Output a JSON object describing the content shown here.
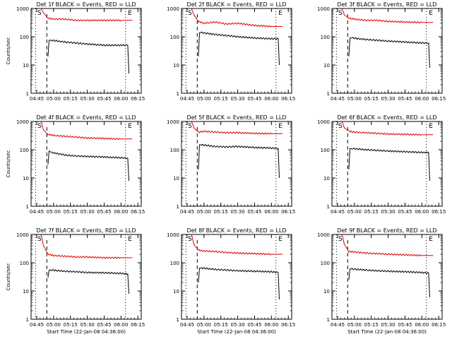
{
  "chart_data": [
    {
      "type": "line",
      "title": "Det 1f BLACK = Events, RED = LLD",
      "xlabel": "",
      "ylabel": "Counts/sec",
      "yscale": "log",
      "ylim": [
        1,
        1000
      ],
      "x_ticks": [
        "04:45",
        "05:00",
        "05:15",
        "05:30",
        "05:45",
        "06:00",
        "06:15"
      ],
      "y_ticks": [
        "1",
        "10",
        "100",
        "1000"
      ],
      "markers": {
        "S": "04:45",
        "E": "06:05"
      },
      "dashed_at": "04:54",
      "dotted_at": [
        "04:44",
        "06:04"
      ],
      "series": [
        {
          "color": "#e00000",
          "x": [
            "04:49",
            "04:51",
            "04:55",
            "05:00",
            "05:10",
            "05:20",
            "05:30",
            "05:45",
            "06:00",
            "06:10"
          ],
          "y": [
            1000,
            700,
            450,
            420,
            420,
            380,
            380,
            380,
            380,
            380
          ]
        },
        {
          "color": "#000000",
          "x": [
            "04:55",
            "04:56",
            "04:58",
            "05:10",
            "05:20",
            "05:30",
            "05:45",
            "06:00",
            "06:06",
            "06:07"
          ],
          "y": [
            20,
            75,
            75,
            65,
            60,
            55,
            50,
            50,
            50,
            5
          ]
        }
      ]
    },
    {
      "type": "line",
      "title": "Det 2f BLACK = Events, RED = LLD",
      "xlabel": "",
      "ylabel": "",
      "yscale": "log",
      "ylim": [
        1,
        1000
      ],
      "x_ticks": [
        "04:45",
        "05:00",
        "05:15",
        "05:30",
        "05:45",
        "06:00",
        "06:15"
      ],
      "y_ticks": [
        "1",
        "10",
        "100",
        "1000"
      ],
      "markers": {
        "S": "04:45",
        "E": "06:05"
      },
      "dashed_at": "04:54",
      "dotted_at": [
        "04:44",
        "06:04"
      ],
      "series": [
        {
          "color": "#e00000",
          "x": [
            "04:49",
            "04:51",
            "04:55",
            "05:00",
            "05:10",
            "05:20",
            "05:30",
            "05:45",
            "06:00",
            "06:10"
          ],
          "y": [
            1000,
            600,
            350,
            300,
            330,
            280,
            300,
            250,
            230,
            230
          ]
        },
        {
          "color": "#000000",
          "x": [
            "04:55",
            "04:56",
            "04:58",
            "05:10",
            "05:20",
            "05:30",
            "05:45",
            "06:00",
            "06:06",
            "06:07"
          ],
          "y": [
            20,
            140,
            140,
            120,
            110,
            100,
            90,
            85,
            85,
            10
          ]
        }
      ]
    },
    {
      "type": "line",
      "title": "Det 3f BLACK = Events, RED = LLD",
      "xlabel": "",
      "ylabel": "",
      "yscale": "log",
      "ylim": [
        1,
        1000
      ],
      "x_ticks": [
        "04:45",
        "05:00",
        "05:15",
        "05:30",
        "05:45",
        "06:00",
        "06:15"
      ],
      "y_ticks": [
        "1",
        "10",
        "100",
        "1000"
      ],
      "markers": {
        "S": "04:45",
        "E": "06:05"
      },
      "dashed_at": "04:54",
      "dotted_at": [
        "04:44",
        "06:04"
      ],
      "series": [
        {
          "color": "#e00000",
          "x": [
            "04:49",
            "04:51",
            "04:55",
            "05:00",
            "05:10",
            "05:20",
            "05:30",
            "05:45",
            "06:00",
            "06:10"
          ],
          "y": [
            1000,
            600,
            450,
            420,
            380,
            380,
            350,
            330,
            320,
            320
          ]
        },
        {
          "color": "#000000",
          "x": [
            "04:55",
            "04:56",
            "04:58",
            "05:10",
            "05:20",
            "05:30",
            "05:45",
            "06:00",
            "06:06",
            "06:07"
          ],
          "y": [
            20,
            90,
            90,
            80,
            75,
            70,
            65,
            60,
            60,
            8
          ]
        }
      ]
    },
    {
      "type": "line",
      "title": "Det 4f BLACK = Events, RED = LLD",
      "xlabel": "",
      "ylabel": "Counts/sec",
      "yscale": "log",
      "ylim": [
        1,
        1000
      ],
      "x_ticks": [
        "04:45",
        "05:00",
        "05:15",
        "05:30",
        "05:45",
        "06:00",
        "06:15"
      ],
      "y_ticks": [
        "1",
        "10",
        "100",
        "1000"
      ],
      "markers": {
        "S": "04:45",
        "E": "06:05"
      },
      "dashed_at": "04:54",
      "dotted_at": [
        "04:44",
        "06:04"
      ],
      "series": [
        {
          "color": "#e00000",
          "x": [
            "04:49",
            "04:51",
            "04:55",
            "05:00",
            "05:10",
            "05:20",
            "05:30",
            "05:45",
            "06:00",
            "06:10"
          ],
          "y": [
            1000,
            500,
            350,
            320,
            300,
            280,
            260,
            250,
            240,
            240
          ]
        },
        {
          "color": "#000000",
          "x": [
            "04:55",
            "04:56",
            "04:58",
            "05:10",
            "05:20",
            "05:30",
            "05:45",
            "06:00",
            "06:06",
            "06:07"
          ],
          "y": [
            30,
            90,
            80,
            65,
            60,
            58,
            55,
            52,
            50,
            8
          ]
        }
      ]
    },
    {
      "type": "line",
      "title": "Det 5f BLACK = Events, RED = LLD",
      "xlabel": "",
      "ylabel": "",
      "yscale": "log",
      "ylim": [
        1,
        1000
      ],
      "x_ticks": [
        "04:45",
        "05:00",
        "05:15",
        "05:30",
        "05:45",
        "06:00",
        "06:15"
      ],
      "y_ticks": [
        "1",
        "10",
        "100",
        "1000"
      ],
      "markers": {
        "S": "04:45",
        "E": "06:05"
      },
      "dashed_at": "04:54",
      "dotted_at": [
        "04:44",
        "06:04"
      ],
      "series": [
        {
          "color": "#e00000",
          "x": [
            "04:49",
            "04:51",
            "04:55",
            "05:00",
            "05:10",
            "05:20",
            "05:30",
            "05:45",
            "06:00",
            "06:10"
          ],
          "y": [
            1000,
            600,
            420,
            450,
            420,
            400,
            400,
            380,
            370,
            370
          ]
        },
        {
          "color": "#000000",
          "x": [
            "04:55",
            "04:56",
            "04:58",
            "05:10",
            "05:20",
            "05:30",
            "05:45",
            "06:00",
            "06:06",
            "06:07"
          ],
          "y": [
            20,
            150,
            150,
            130,
            125,
            130,
            120,
            115,
            110,
            10
          ]
        }
      ]
    },
    {
      "type": "line",
      "title": "Det 6f BLACK = Events, RED = LLD",
      "xlabel": "",
      "ylabel": "",
      "yscale": "log",
      "ylim": [
        1,
        1000
      ],
      "x_ticks": [
        "04:45",
        "05:00",
        "05:15",
        "05:30",
        "05:45",
        "06:00",
        "06:15"
      ],
      "y_ticks": [
        "1",
        "10",
        "100",
        "1000"
      ],
      "markers": {
        "S": "04:45",
        "E": "06:05"
      },
      "dashed_at": "04:54",
      "dotted_at": [
        "04:44",
        "06:04"
      ],
      "series": [
        {
          "color": "#e00000",
          "x": [
            "04:49",
            "04:51",
            "04:55",
            "05:00",
            "05:10",
            "05:20",
            "05:30",
            "05:45",
            "06:00",
            "06:10"
          ],
          "y": [
            1000,
            600,
            450,
            420,
            400,
            380,
            360,
            350,
            340,
            340
          ]
        },
        {
          "color": "#000000",
          "x": [
            "04:55",
            "04:56",
            "04:58",
            "05:10",
            "05:20",
            "05:30",
            "05:45",
            "06:00",
            "06:06",
            "06:07"
          ],
          "y": [
            20,
            110,
            110,
            100,
            95,
            90,
            85,
            80,
            80,
            8
          ]
        }
      ]
    },
    {
      "type": "line",
      "title": "Det 7f BLACK = Events, RED = LLD",
      "xlabel": "Start Time (22-Jan-08 04:36:00)",
      "ylabel": "Counts/sec",
      "yscale": "log",
      "ylim": [
        1,
        1000
      ],
      "x_ticks": [
        "04:45",
        "05:00",
        "05:15",
        "05:30",
        "05:45",
        "06:00",
        "06:15"
      ],
      "y_ticks": [
        "1",
        "10",
        "100",
        "1000"
      ],
      "markers": {
        "S": "04:45",
        "E": "06:05"
      },
      "dashed_at": "04:54",
      "dotted_at": [
        "04:44",
        "06:04"
      ],
      "series": [
        {
          "color": "#e00000",
          "x": [
            "04:49",
            "04:51",
            "04:55",
            "05:00",
            "05:10",
            "05:20",
            "05:30",
            "05:45",
            "06:00",
            "06:10"
          ],
          "y": [
            1000,
            400,
            200,
            180,
            170,
            160,
            160,
            150,
            150,
            150
          ]
        },
        {
          "color": "#000000",
          "x": [
            "04:55",
            "04:56",
            "04:58",
            "05:10",
            "05:20",
            "05:30",
            "05:45",
            "06:00",
            "06:06",
            "06:07"
          ],
          "y": [
            30,
            55,
            55,
            50,
            48,
            45,
            44,
            42,
            40,
            8
          ]
        }
      ]
    },
    {
      "type": "line",
      "title": "Det 8f BLACK = Events, RED = LLD",
      "xlabel": "Start Time (22-Jan-08 04:36:00)",
      "ylabel": "",
      "yscale": "log",
      "ylim": [
        1,
        1000
      ],
      "x_ticks": [
        "04:45",
        "05:00",
        "05:15",
        "05:30",
        "05:45",
        "06:00",
        "06:15"
      ],
      "y_ticks": [
        "1",
        "10",
        "100",
        "1000"
      ],
      "markers": {
        "S": "04:45",
        "E": "06:05"
      },
      "dashed_at": "04:54",
      "dotted_at": [
        "04:44",
        "06:04"
      ],
      "series": [
        {
          "color": "#e00000",
          "x": [
            "04:49",
            "04:51",
            "04:55",
            "05:00",
            "05:10",
            "05:20",
            "05:30",
            "05:45",
            "06:00",
            "06:10"
          ],
          "y": [
            1000,
            450,
            280,
            260,
            250,
            230,
            220,
            210,
            200,
            200
          ]
        },
        {
          "color": "#000000",
          "x": [
            "04:55",
            "04:56",
            "04:58",
            "05:10",
            "05:20",
            "05:30",
            "05:45",
            "06:00",
            "06:06",
            "06:07"
          ],
          "y": [
            20,
            65,
            65,
            58,
            55,
            52,
            50,
            48,
            45,
            5
          ]
        }
      ]
    },
    {
      "type": "line",
      "title": "Det 9f BLACK = Events, RED = LLD",
      "xlabel": "Start Time (22-Jan-08 04:36:00)",
      "ylabel": "",
      "yscale": "log",
      "ylim": [
        1,
        1000
      ],
      "x_ticks": [
        "04:45",
        "05:00",
        "05:15",
        "05:30",
        "05:45",
        "06:00",
        "06:15"
      ],
      "y_ticks": [
        "1",
        "10",
        "100",
        "1000"
      ],
      "markers": {
        "S": "04:45",
        "E": "06:05"
      },
      "dashed_at": "04:54",
      "dotted_at": [
        "04:44",
        "06:04"
      ],
      "series": [
        {
          "color": "#e00000",
          "x": [
            "04:49",
            "04:51",
            "04:55",
            "05:00",
            "05:10",
            "05:20",
            "05:30",
            "05:45",
            "06:00",
            "06:10"
          ],
          "y": [
            1000,
            450,
            250,
            240,
            220,
            210,
            200,
            190,
            180,
            180
          ]
        },
        {
          "color": "#000000",
          "x": [
            "04:55",
            "04:56",
            "04:58",
            "05:10",
            "05:20",
            "05:30",
            "05:45",
            "06:00",
            "06:06",
            "06:07"
          ],
          "y": [
            25,
            60,
            60,
            55,
            52,
            50,
            48,
            45,
            43,
            6
          ]
        }
      ]
    }
  ]
}
